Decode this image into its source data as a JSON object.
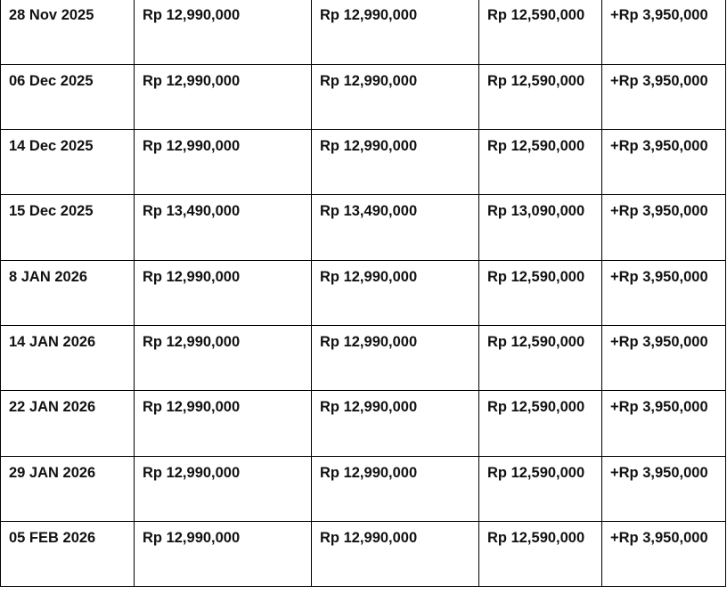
{
  "rows": [
    {
      "date": "28 Nov 2025",
      "price1": "Rp 12,990,000",
      "price2": "Rp 12,990,000",
      "price3": "Rp 12,590,000",
      "diff": "+Rp 3,950,000"
    },
    {
      "date": "06 Dec 2025",
      "price1": "Rp 12,990,000",
      "price2": "Rp 12,990,000",
      "price3": "Rp 12,590,000",
      "diff": "+Rp 3,950,000"
    },
    {
      "date": "14 Dec 2025",
      "price1": "Rp 12,990,000",
      "price2": "Rp 12,990,000",
      "price3": "Rp 12,590,000",
      "diff": "+Rp 3,950,000"
    },
    {
      "date": "15 Dec 2025",
      "price1": "Rp 13,490,000",
      "price2": "Rp 13,490,000",
      "price3": "Rp 13,090,000",
      "diff": "+Rp 3,950,000"
    },
    {
      "date": "8 JAN 2026",
      "price1": "Rp 12,990,000",
      "price2": "Rp 12,990,000",
      "price3": "Rp 12,590,000",
      "diff": "+Rp 3,950,000"
    },
    {
      "date": "14 JAN 2026",
      "price1": "Rp 12,990,000",
      "price2": "Rp 12,990,000",
      "price3": "Rp 12,590,000",
      "diff": "+Rp 3,950,000"
    },
    {
      "date": "22 JAN 2026",
      "price1": "Rp 12,990,000",
      "price2": "Rp 12,990,000",
      "price3": "Rp 12,590,000",
      "diff": "+Rp 3,950,000"
    },
    {
      "date": "29 JAN 2026",
      "price1": "Rp 12,990,000",
      "price2": "Rp 12,990,000",
      "price3": "Rp 12,590,000",
      "diff": "+Rp 3,950,000"
    },
    {
      "date": "05 FEB 2026",
      "price1": "Rp 12,990,000",
      "price2": "Rp 12,990,000",
      "price3": "Rp 12,590,000",
      "diff": "+Rp 3,950,000"
    }
  ]
}
